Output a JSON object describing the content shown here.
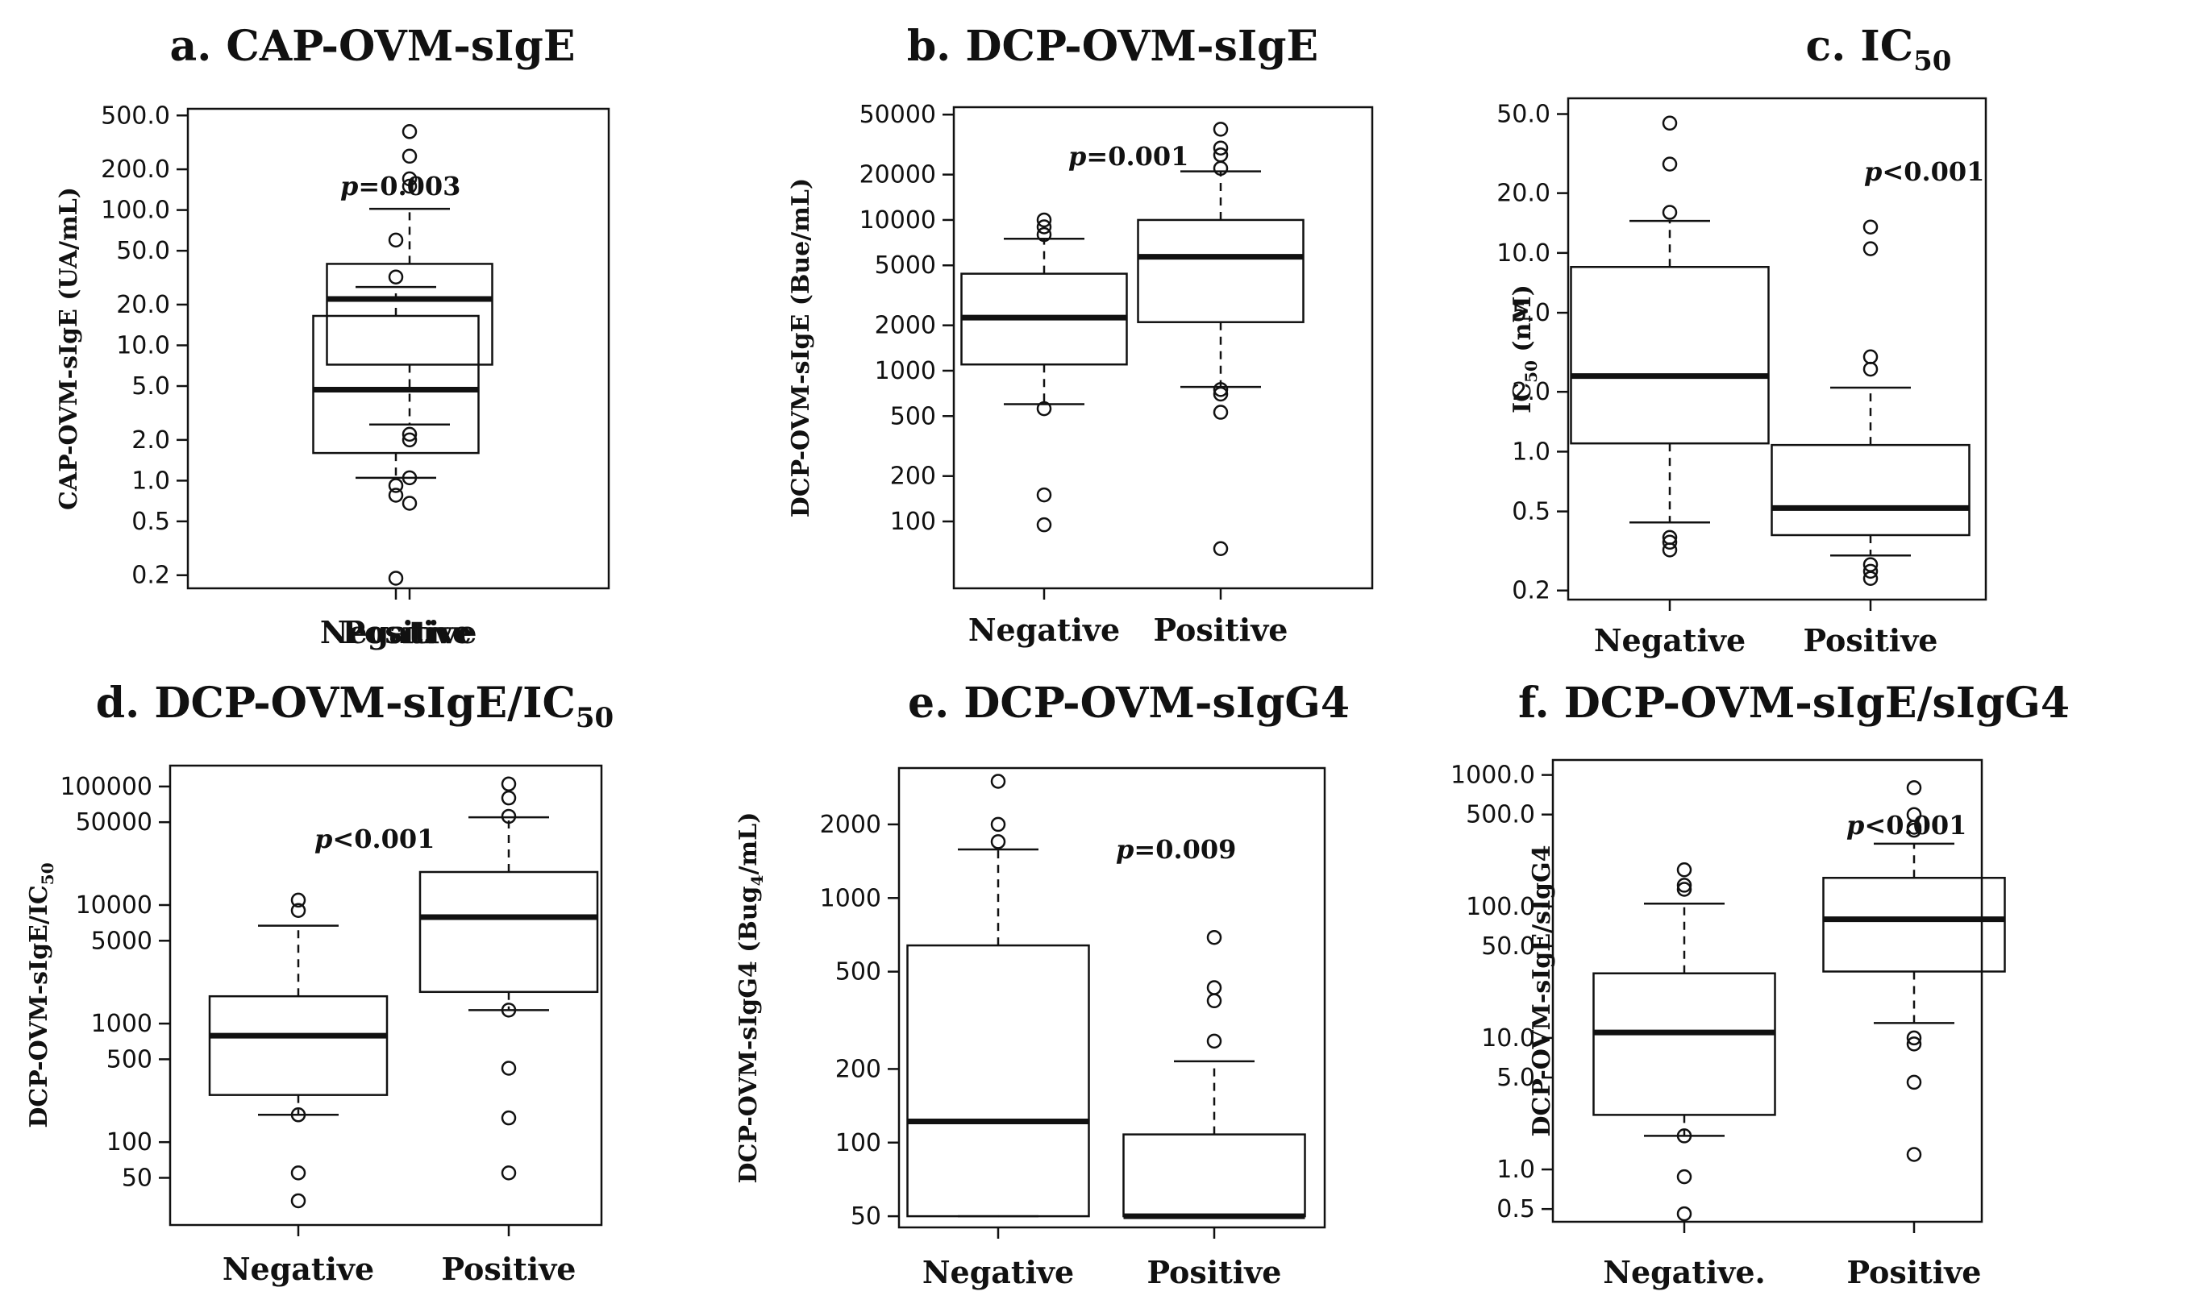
{
  "chart_data": [
    {
      "type": "box",
      "title": "a. CAP-OVM-sIgE",
      "ylabel": "CAP-OVM-sIgE (UA/mL)",
      "y_scale": "log",
      "ylim": [
        0.16,
        560
      ],
      "yticks": [
        0.2,
        0.5,
        1.0,
        2.0,
        5.0,
        10.0,
        20.0,
        50.0,
        100.0,
        200.0,
        500.0
      ],
      "ytick_labels": [
        "0.2",
        "0.5",
        "1.0",
        "2.0",
        "5.0",
        "10.0",
        "20.0",
        "50.0",
        "100.0",
        "200.0",
        "500.0"
      ],
      "annotation": {
        "prefix": "p",
        "text": "=0.003"
      },
      "categories": [
        "Negative",
        "Positive"
      ],
      "boxes": [
        {
          "q1": 1.6,
          "median": 4.7,
          "q3": 16.5,
          "whisker_low": 1.05,
          "whisker_high": 27,
          "outliers": [
            0.92,
            0.78,
            0.19,
            32,
            60
          ]
        },
        {
          "q1": 7.2,
          "median": 22,
          "q3": 40,
          "whisker_low": 2.6,
          "whisker_high": 102,
          "outliers": [
            2.2,
            2.0,
            1.05,
            0.68,
            150,
            170,
            250,
            380
          ]
        }
      ]
    },
    {
      "type": "box",
      "title": "b. DCP-OVM-sIgE",
      "ylabel": "DCP-OVM-sIgE (Bue/mL)",
      "y_scale": "log",
      "ylim": [
        36,
        56000
      ],
      "yticks": [
        100,
        200,
        500,
        1000,
        2000,
        5000,
        10000,
        20000,
        50000
      ],
      "ytick_labels": [
        "100",
        "200",
        "500",
        "1000",
        "2000",
        "5000",
        "10000",
        "20000",
        "50000"
      ],
      "annotation": {
        "prefix": "p",
        "text": "=0.001"
      },
      "categories": [
        "Negative",
        "Positive"
      ],
      "boxes": [
        {
          "q1": 1100,
          "median": 2250,
          "q3": 4400,
          "whisker_low": 600,
          "whisker_high": 7500,
          "outliers": [
            560,
            150,
            95,
            8000,
            9000,
            10000
          ]
        },
        {
          "q1": 2100,
          "median": 5700,
          "q3": 10000,
          "whisker_low": 780,
          "whisker_high": 21000,
          "outliers": [
            750,
            700,
            530,
            66,
            22000,
            27000,
            30000,
            40000
          ]
        }
      ]
    },
    {
      "type": "box",
      "title": "c. IC50",
      "title_main": "c.",
      "title_sym": "IC",
      "title_sub": "50",
      "ylabel_main": "IC",
      "ylabel_sub": "50",
      "ylabel_unit": " (nM)",
      "y_scale": "log",
      "ylim": [
        0.18,
        60
      ],
      "yticks": [
        0.2,
        0.5,
        1.0,
        2.0,
        5.0,
        10.0,
        20.0,
        50.0
      ],
      "ytick_labels": [
        "0.2",
        "0.5",
        "1.0",
        "2.0",
        "5.0",
        "10.0",
        "20.0",
        "50.0"
      ],
      "annotation": {
        "prefix": "p",
        "text": "<0.001"
      },
      "categories": [
        "Negative",
        "Positive"
      ],
      "boxes": [
        {
          "q1": 1.1,
          "median": 2.4,
          "q3": 8.5,
          "whisker_low": 0.44,
          "whisker_high": 14.5,
          "outliers": [
            0.37,
            0.35,
            0.32,
            16,
            28,
            45
          ]
        },
        {
          "q1": 0.38,
          "median": 0.52,
          "q3": 1.08,
          "whisker_low": 0.3,
          "whisker_high": 2.1,
          "outliers": [
            0.27,
            0.25,
            0.23,
            2.6,
            3.0,
            10.5,
            13.5
          ]
        }
      ]
    },
    {
      "type": "box",
      "title": "d. DCP-OVM-sIgE/IC50",
      "title_main": "d. DCP-OVM-sIgE/IC",
      "title_sub": "50",
      "ylabel_main": "DCP-OVM-sIgE/IC",
      "ylabel_sub": "50",
      "y_scale": "log",
      "ylim": [
        20,
        150000
      ],
      "yticks": [
        50,
        100,
        500,
        1000,
        5000,
        10000,
        50000,
        100000
      ],
      "ytick_labels": [
        "50",
        "100",
        "500",
        "1000",
        "5000",
        "10000",
        "50000",
        "100000"
      ],
      "annotation": {
        "prefix": "p",
        "text": "<0.001"
      },
      "categories": [
        "Negative",
        "Positive"
      ],
      "boxes": [
        {
          "q1": 250,
          "median": 790,
          "q3": 1700,
          "whisker_low": 170,
          "whisker_high": 6700,
          "outliers": [
            170,
            55,
            32,
            9000,
            11000
          ]
        },
        {
          "q1": 1850,
          "median": 7900,
          "q3": 19000,
          "whisker_low": 1300,
          "whisker_high": 55000,
          "outliers": [
            1300,
            420,
            160,
            55,
            56000,
            80000,
            105000
          ]
        }
      ]
    },
    {
      "type": "box",
      "title": "e. DCP-OVM-sIgG4",
      "ylabel_main": "DCP-OVM-sIgG4 (Bug",
      "ylabel_sub": "4",
      "ylabel_unit": "/mL)",
      "y_scale": "log",
      "ylim": [
        45,
        3400
      ],
      "yticks": [
        50,
        100,
        200,
        500,
        1000,
        2000
      ],
      "ytick_labels": [
        "50",
        "100",
        "200",
        "500",
        "1000",
        "2000"
      ],
      "annotation": {
        "prefix": "p",
        "text": "=0.009"
      },
      "categories": [
        "Negative",
        "Positive"
      ],
      "boxes": [
        {
          "q1": 50,
          "median": 122,
          "q3": 640,
          "whisker_low": 50,
          "whisker_high": 1580,
          "outliers": [
            1700,
            2000,
            3000
          ]
        },
        {
          "q1": 50,
          "median": 50,
          "q3": 108,
          "whisker_low": 50,
          "whisker_high": 215,
          "outliers": [
            260,
            380,
            430,
            690
          ]
        }
      ]
    },
    {
      "type": "box",
      "title": "f. DCP-OVM-sIgE/sIgG4",
      "ylabel": "DCP-OVM-sIgE/sIgG4",
      "y_scale": "log",
      "ylim": [
        0.4,
        1300
      ],
      "yticks": [
        0.5,
        1.0,
        5.0,
        10.0,
        50.0,
        100.0,
        500.0,
        1000.0
      ],
      "ytick_labels": [
        "0.5",
        "1.0",
        "5.0",
        "10.0",
        "50.0",
        "100.0",
        "500.0",
        "1000.0"
      ],
      "annotation": {
        "prefix": "p",
        "text": "<0.001"
      },
      "categories": [
        "Negative.",
        "Positive"
      ],
      "boxes": [
        {
          "q1": 2.6,
          "median": 11,
          "q3": 31,
          "whisker_low": 1.8,
          "whisker_high": 105,
          "outliers": [
            1.8,
            0.88,
            0.46,
            135,
            145,
            190
          ]
        },
        {
          "q1": 32,
          "median": 80,
          "q3": 165,
          "whisker_low": 13,
          "whisker_high": 300,
          "outliers": [
            10,
            9,
            4.6,
            1.3,
            380,
            400,
            500,
            800
          ]
        }
      ]
    }
  ]
}
